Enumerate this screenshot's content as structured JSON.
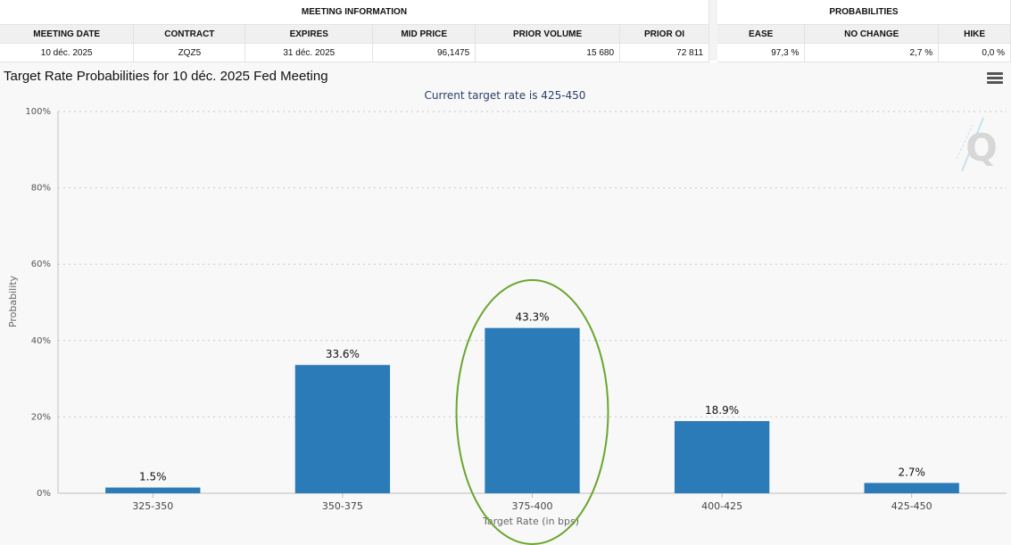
{
  "meeting_info": {
    "title": "MEETING INFORMATION",
    "headers": [
      "MEETING DATE",
      "CONTRACT",
      "EXPIRES",
      "MID PRICE",
      "PRIOR VOLUME",
      "PRIOR OI"
    ],
    "values": [
      "10 déc. 2025",
      "ZQZ5",
      "31 déc. 2025",
      "96,1475",
      "15 680",
      "72 811"
    ]
  },
  "probabilities": {
    "title": "PROBABILITIES",
    "headers": [
      "EASE",
      "NO CHANGE",
      "HIKE"
    ],
    "values": [
      "97,3 %",
      "2,7 %",
      "0,0 %"
    ]
  },
  "chart_title": "Target Rate Probabilities for 10 déc. 2025 Fed Meeting",
  "chart_data": {
    "type": "bar",
    "title": "Target Rate Probabilities for 10 déc. 2025 Fed Meeting",
    "subtitle": "Current target rate is 425-450",
    "xlabel": "Target Rate (in bps)",
    "ylabel": "Probability",
    "categories": [
      "325-350",
      "350-375",
      "375-400",
      "400-425",
      "425-450"
    ],
    "values": [
      1.5,
      33.6,
      43.3,
      18.9,
      2.7
    ],
    "data_labels": [
      "1.5%",
      "33.6%",
      "43.3%",
      "18.9%",
      "2.7%"
    ],
    "y_ticks": [
      0,
      20,
      40,
      60,
      80,
      100
    ],
    "y_tick_labels": [
      "0%",
      "20%",
      "40%",
      "60%",
      "80%",
      "100%"
    ],
    "ylim": [
      0,
      100
    ],
    "grid": true,
    "bar_color": "#2b7bb9",
    "highlight_category": "375-400",
    "highlight_color": "#6aa62e"
  },
  "colors": {
    "bar": "#2b7bb9",
    "highlight": "#6aa62e",
    "panel_bg": "#f8f8f8"
  },
  "icons": {
    "menu": "hamburger-menu-icon",
    "watermark": "q-logo-watermark"
  }
}
